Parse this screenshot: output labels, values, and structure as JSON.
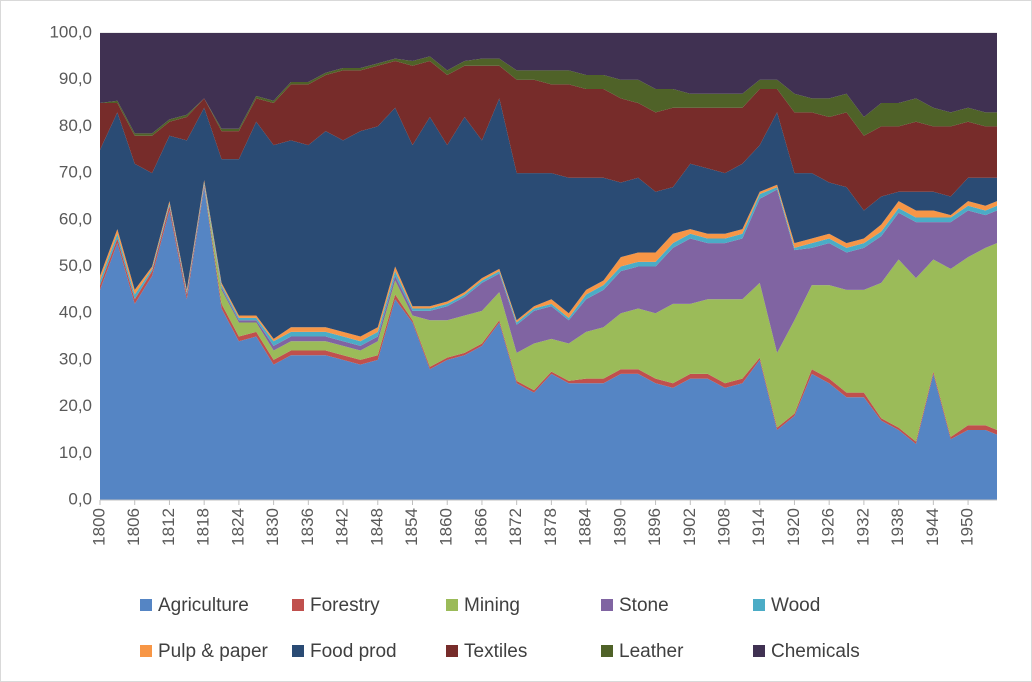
{
  "chart_data": {
    "type": "stacked_area",
    "x": [
      1800,
      1803,
      1806,
      1809,
      1812,
      1815,
      1818,
      1821,
      1824,
      1827,
      1830,
      1833,
      1836,
      1839,
      1842,
      1845,
      1848,
      1851,
      1854,
      1857,
      1860,
      1863,
      1866,
      1869,
      1872,
      1875,
      1878,
      1881,
      1884,
      1887,
      1890,
      1893,
      1896,
      1899,
      1902,
      1905,
      1908,
      1911,
      1914,
      1917,
      1920,
      1923,
      1926,
      1929,
      1932,
      1935,
      1938,
      1941,
      1944,
      1947,
      1950,
      1953,
      1955
    ],
    "xlim": [
      1800,
      1955
    ],
    "xticks": [
      1800,
      1806,
      1812,
      1818,
      1824,
      1830,
      1836,
      1842,
      1848,
      1854,
      1860,
      1866,
      1872,
      1878,
      1884,
      1890,
      1896,
      1902,
      1908,
      1914,
      1920,
      1926,
      1932,
      1938,
      1944,
      1950
    ],
    "ylim": [
      0,
      100
    ],
    "yticks": [
      {
        "value": 0,
        "label": "0,0"
      },
      {
        "value": 10,
        "label": "10,0"
      },
      {
        "value": 20,
        "label": "20,0"
      },
      {
        "value": 30,
        "label": "30,0"
      },
      {
        "value": 40,
        "label": "40,0"
      },
      {
        "value": 50,
        "label": "50,0"
      },
      {
        "value": 60,
        "label": "60,0"
      },
      {
        "value": 70,
        "label": "70,0"
      },
      {
        "value": 80,
        "label": "80,0"
      },
      {
        "value": 90,
        "label": "90,0"
      },
      {
        "value": 100,
        "label": "100,0"
      }
    ],
    "grid": true,
    "series": [
      {
        "name": "Agriculture",
        "color": "#5585c4",
        "values": [
          45,
          55,
          42,
          48,
          62,
          43,
          67,
          41,
          34,
          35,
          29,
          31,
          31,
          31,
          30,
          29,
          30,
          43,
          38,
          28,
          30,
          31,
          33,
          38,
          25,
          23,
          27,
          25,
          25,
          25,
          27,
          27,
          25,
          24,
          26,
          26,
          24,
          25,
          30,
          15,
          18,
          27,
          25,
          22,
          22,
          17,
          15,
          12,
          27,
          13,
          15,
          15,
          14
        ]
      },
      {
        "name": "Forestry",
        "color": "#c0504d",
        "values": [
          1,
          1,
          1,
          1,
          1,
          1,
          0.5,
          1,
          1,
          1,
          1,
          1,
          1,
          1,
          1,
          1,
          1,
          1,
          0.5,
          0.5,
          0.5,
          0.5,
          0.5,
          0.5,
          0.5,
          0.5,
          0.5,
          0.5,
          1,
          1,
          1,
          1,
          1,
          1,
          1,
          1,
          1,
          1,
          0.5,
          0.5,
          0.5,
          1,
          1,
          1,
          1,
          0.5,
          0.5,
          0.5,
          0.5,
          0.5,
          1,
          1,
          1
        ]
      },
      {
        "name": "Mining",
        "color": "#9bbb59",
        "values": [
          0,
          0,
          0,
          0,
          0,
          0,
          0,
          3,
          3,
          2,
          2,
          2,
          2,
          2,
          2,
          2,
          3,
          3,
          1,
          10,
          8,
          8,
          7,
          6,
          6,
          10,
          7,
          8,
          10,
          11,
          12,
          13,
          14,
          17,
          15,
          16,
          18,
          17,
          16,
          16,
          20,
          18,
          20,
          22,
          22,
          29,
          36,
          35,
          24,
          36,
          36,
          38,
          40
        ]
      },
      {
        "name": "Stone",
        "color": "#8064a2",
        "values": [
          0,
          0,
          0,
          0,
          0,
          0,
          0,
          0.5,
          0.5,
          0.5,
          1,
          1,
          1,
          1,
          1,
          1,
          1,
          1,
          1,
          2,
          3,
          4,
          6,
          4,
          6,
          7,
          7,
          5,
          7,
          8,
          9,
          9,
          10,
          12,
          14,
          12,
          12,
          13,
          18,
          35,
          15,
          8,
          9,
          8,
          9,
          10,
          10,
          12,
          8,
          10,
          10,
          7,
          7
        ]
      },
      {
        "name": "Wood",
        "color": "#4bacc6",
        "values": [
          1,
          1,
          1,
          0.5,
          0.5,
          0.5,
          0.5,
          0.5,
          0.5,
          0.5,
          1,
          1,
          1,
          1,
          1,
          1,
          1,
          1,
          0.5,
          0.5,
          0.5,
          0.5,
          0.5,
          0.5,
          0.5,
          0.5,
          0.5,
          0.5,
          1,
          1,
          1,
          1,
          1,
          1,
          1,
          1,
          1,
          1,
          1,
          0.5,
          0.5,
          1,
          1,
          1,
          1,
          1,
          1,
          1,
          1,
          1,
          1,
          1,
          1
        ]
      },
      {
        "name": "Pulp & paper",
        "color": "#f79646",
        "values": [
          1,
          1,
          1,
          0.5,
          0.5,
          0.5,
          0.5,
          0.5,
          0.5,
          0.5,
          0.5,
          1,
          1,
          1,
          1,
          1,
          1,
          1,
          0.5,
          0.5,
          0.5,
          0.5,
          0.5,
          0.5,
          0.5,
          0.5,
          1,
          1,
          1,
          1,
          2,
          2,
          2,
          2,
          1,
          1,
          1,
          1,
          0.5,
          0.5,
          1,
          1,
          1,
          1,
          1,
          1.5,
          1.5,
          1.5,
          1.5,
          0.5,
          1,
          1,
          1
        ]
      },
      {
        "name": "Food prod",
        "color": "#2a4b74",
        "values": [
          27,
          25,
          27,
          20,
          14,
          32,
          15.5,
          26.5,
          33.5,
          41.5,
          41.5,
          40,
          39,
          42,
          41,
          44,
          43,
          34,
          34.5,
          40.5,
          33.5,
          37.5,
          29.5,
          36.5,
          31.5,
          28.5,
          27,
          29,
          24,
          22,
          16,
          16,
          13,
          10,
          14,
          14,
          13,
          14,
          10,
          15.5,
          15,
          14,
          11,
          12,
          6,
          6,
          2,
          4,
          4,
          4,
          5,
          6,
          5
        ]
      },
      {
        "name": "Textiles",
        "color": "#772c2a",
        "values": [
          10,
          2,
          6,
          8,
          3,
          5,
          2,
          6,
          6,
          5,
          9,
          12,
          13,
          12,
          15,
          13,
          13,
          10,
          17,
          12,
          15,
          11,
          16,
          7,
          20,
          20,
          19,
          20,
          19,
          19,
          18,
          16,
          17,
          17,
          12,
          13,
          14,
          12,
          12,
          5,
          13,
          13,
          14,
          16,
          16,
          15,
          14,
          15,
          14,
          15,
          12,
          11,
          11
        ]
      },
      {
        "name": "Leather",
        "color": "#4f6228",
        "values": [
          0,
          0.5,
          0.5,
          0.5,
          0.5,
          0.5,
          0,
          0.5,
          0.5,
          0.5,
          0.5,
          0.5,
          0.5,
          0.5,
          0.5,
          0.5,
          0.5,
          0.5,
          1,
          1,
          1,
          1,
          1.5,
          1.5,
          2,
          2,
          3,
          3,
          3,
          3,
          4,
          5,
          5,
          4,
          3,
          3,
          3,
          3,
          2,
          2,
          4,
          3,
          4,
          4,
          4,
          5,
          5,
          5,
          4,
          3,
          3,
          3,
          3
        ]
      },
      {
        "name": "Chemicals",
        "color": "#403152",
        "values": [
          15,
          14.5,
          21.5,
          21.5,
          18.5,
          17.5,
          14,
          20.5,
          20.5,
          13.5,
          14.5,
          10.5,
          10.5,
          8.5,
          7.5,
          7.5,
          6.5,
          5.5,
          6,
          5,
          8,
          6,
          5.5,
          5.5,
          8,
          8,
          8,
          8,
          9,
          9,
          10,
          10,
          12,
          12,
          13,
          13,
          13,
          13,
          10,
          10,
          13,
          14,
          14,
          13,
          18,
          15,
          15,
          14,
          16,
          17,
          16,
          17,
          17
        ]
      }
    ]
  }
}
